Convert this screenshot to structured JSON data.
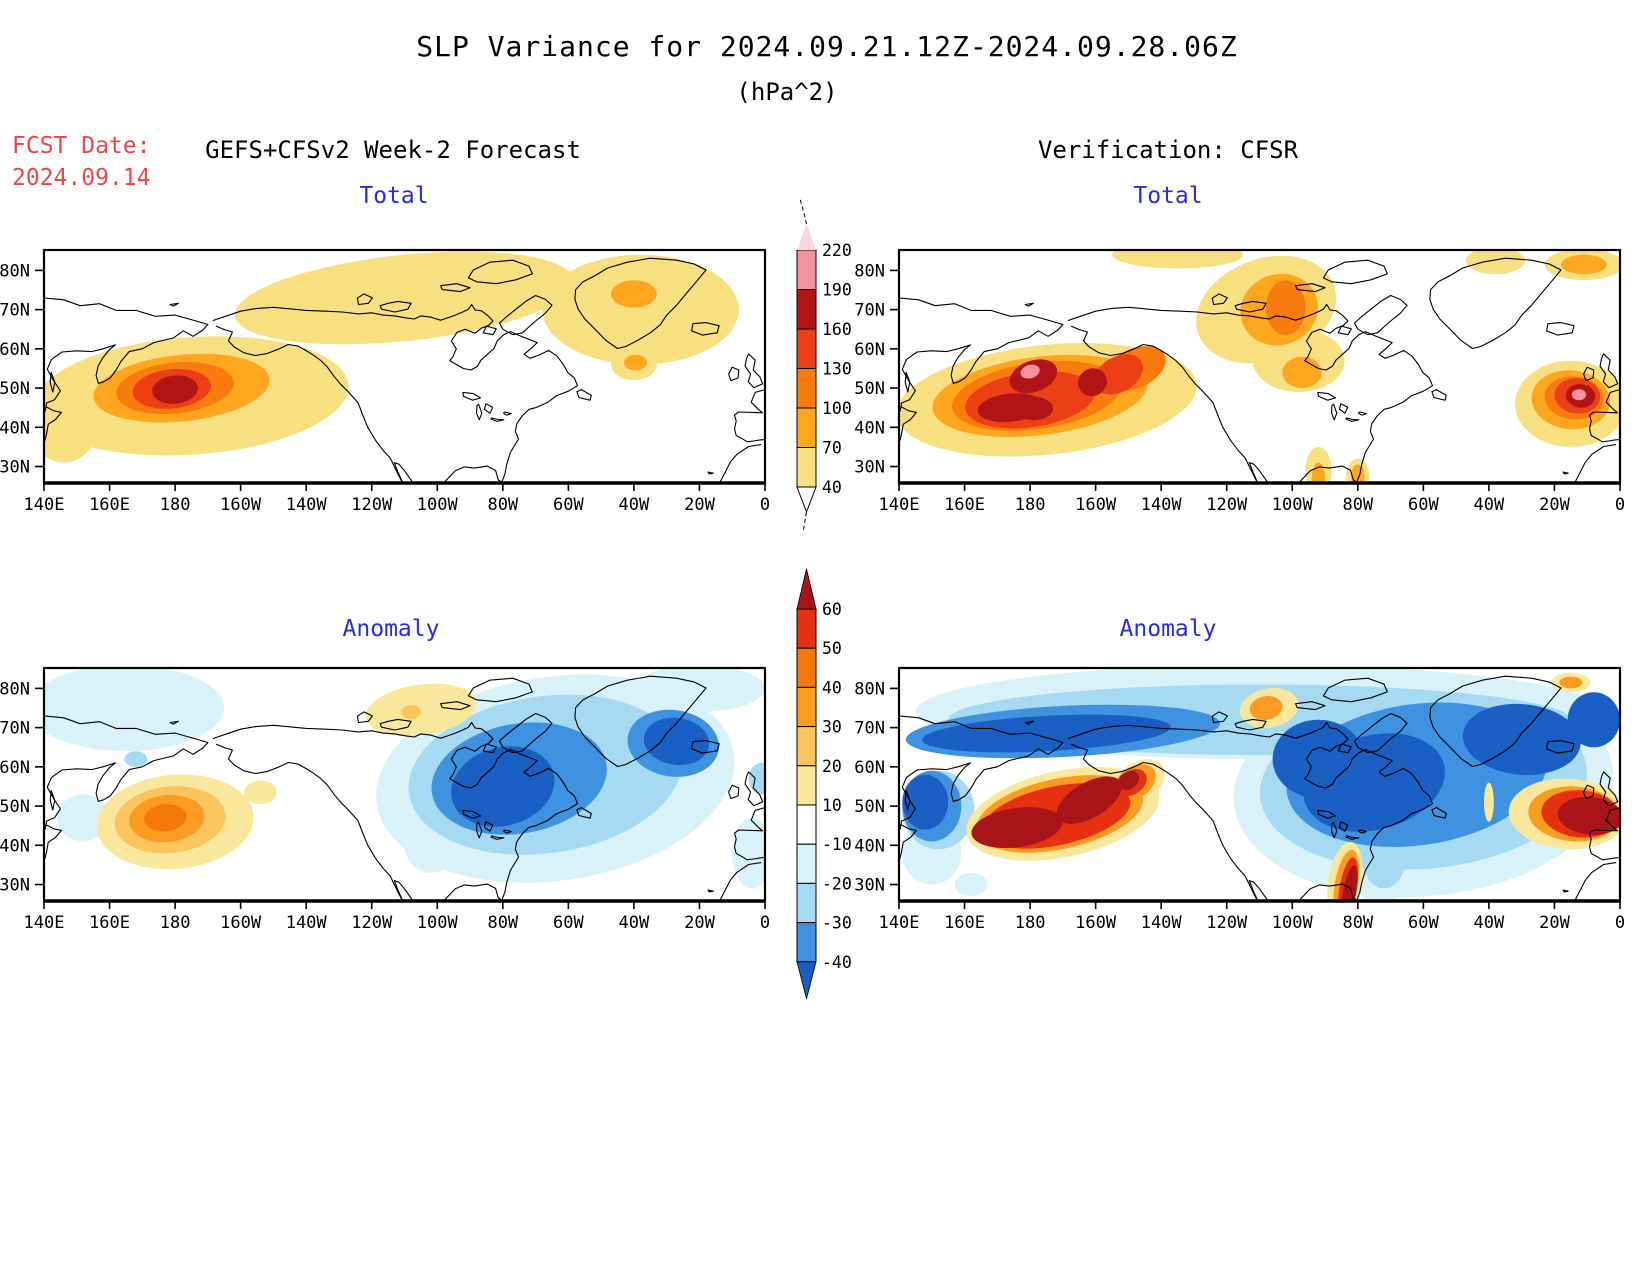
{
  "header": {
    "title": "SLP Variance for 2024.09.21.12Z-2024.09.28.06Z",
    "subtitle": "(hPa^2)"
  },
  "fcst": {
    "label": "FCST Date:",
    "date": "2024.09.14"
  },
  "columns": {
    "left_header": "GEFS+CFSv2 Week-2 Forecast",
    "right_header": "Verification: CFSR"
  },
  "colors": {
    "fcst_date": "#F04545",
    "panel_title": "#2B2BE8",
    "coastline": "#000000"
  },
  "chart_data": {
    "type": "heatmap",
    "subtype": "filled-contour-map",
    "units": "hPa^2",
    "grid": false,
    "lon_range": [
      "140E",
      "0"
    ],
    "lat_range": [
      "~26N",
      "~85N"
    ],
    "axes": {
      "lon_values": [
        140,
        160,
        180,
        200,
        220,
        240,
        260,
        280,
        300,
        320,
        340,
        360
      ],
      "lon_labels": [
        "140E",
        "160E",
        "180",
        "160W",
        "140W",
        "120W",
        "100W",
        "80W",
        "60W",
        "40W",
        "20W",
        "0"
      ],
      "lat_values": [
        80,
        70,
        60,
        50,
        40,
        30
      ],
      "lat_labels": [
        "80N",
        "70N",
        "60N",
        "50N",
        "40N",
        "30N"
      ]
    },
    "palette": {
      "t40": "#F8E080",
      "t70": "#FFA61E",
      "t100": "#F97B0D",
      "t130": "#EC3F15",
      "t160": "#B01414",
      "t190": "#F2939F",
      "t220": "#F9D6DD",
      "p10": "#F9E89B",
      "p20": "#FBC45C",
      "p30": "#FB9B1F",
      "p40": "#F4790D",
      "p50": "#E5310F",
      "p60": "#A81418",
      "n10": "#D9F1F9",
      "n20": "#A6D9F2",
      "n30": "#3F92E0",
      "n40": "#1A5FC4",
      "white": "#FFFFFF"
    },
    "colorbars": {
      "total": {
        "ticks_top_to_bottom": [
          "220",
          "190",
          "160",
          "130",
          "100",
          "70",
          "40"
        ],
        "segment_colors_top_to_bottom": [
          "t190",
          "t160",
          "t130",
          "t100",
          "t70",
          "t40"
        ],
        "tip_top_color": "t220"
      },
      "anomaly": {
        "ticks_top_to_bottom": [
          "60",
          "50",
          "40",
          "30",
          "20",
          "10",
          "-10",
          "-20",
          "-30",
          "-40"
        ],
        "segment_colors_top_to_bottom": [
          "p50",
          "p40",
          "p30",
          "p20",
          "p10",
          "white",
          "n10",
          "n20",
          "n30"
        ],
        "tip_top_color": "p60",
        "tip_bottom_color": "n40"
      }
    },
    "panels": [
      {
        "id": "fcst-total",
        "title": "Total",
        "column": "left",
        "row": "top",
        "colorbar": "total",
        "features": [
          [
            "t40",
            185,
            48,
            48,
            15,
            -4
          ],
          [
            "t40",
            146,
            42,
            11,
            11,
            0
          ],
          [
            "t40",
            250,
            73,
            52,
            11,
            -6
          ],
          [
            "t40",
            322,
            70,
            30,
            14,
            0
          ],
          [
            "t40",
            320,
            56,
            7,
            4,
            0
          ],
          [
            "t70",
            182,
            50,
            27,
            8.5,
            -6
          ],
          [
            "t70",
            320,
            74,
            7,
            3.5,
            0
          ],
          [
            "t70",
            320.5,
            56.5,
            3.5,
            2,
            0
          ],
          [
            "t100",
            180,
            50,
            18,
            6.5,
            -6
          ],
          [
            "t130",
            179,
            49.8,
            12,
            5,
            -6
          ],
          [
            "t160",
            180,
            49.6,
            7,
            3.6,
            -6
          ]
        ]
      },
      {
        "id": "cfsr-total",
        "title": "Total",
        "column": "right",
        "row": "top",
        "colorbar": "total",
        "features": [
          [
            "t40",
            185,
            47,
            46,
            14,
            -6
          ],
          [
            "t40",
            252,
            70,
            22,
            13,
            -20
          ],
          [
            "t40",
            262,
            57,
            14,
            8,
            0
          ],
          [
            "t40",
            345,
            46,
            17,
            11,
            0
          ],
          [
            "t40",
            349,
            81.5,
            12,
            4,
            0
          ],
          [
            "t40",
            322,
            82.5,
            9,
            3.5,
            0
          ],
          [
            "t40",
            225,
            84,
            20,
            3.5,
            0
          ],
          [
            "t40",
            280,
            27.5,
            3.5,
            4.5,
            0
          ],
          [
            "t40",
            268,
            29,
            4,
            6,
            0
          ],
          [
            "t70",
            183,
            48,
            33,
            10,
            -7
          ],
          [
            "t70",
            256,
            70,
            12,
            9,
            -20
          ],
          [
            "t70",
            263,
            54,
            6,
            4,
            0
          ],
          [
            "t70",
            345,
            47,
            12,
            7.5,
            5
          ],
          [
            "t70",
            349,
            81.5,
            7,
            2.5,
            0
          ],
          [
            "t70",
            280,
            27.5,
            2,
            3,
            0
          ],
          [
            "t70",
            268,
            27,
            2,
            4,
            0
          ],
          [
            "t100",
            182,
            48,
            26,
            8.5,
            -8
          ],
          [
            "t100",
            212,
            55,
            10,
            5,
            -25
          ],
          [
            "t100",
            258,
            70.5,
            6,
            7,
            0
          ],
          [
            "t100",
            346,
            47.5,
            9,
            5.5,
            5
          ],
          [
            "t130",
            180,
            47,
            20,
            7,
            -8
          ],
          [
            "t130",
            207,
            53.5,
            8,
            4.5,
            -30
          ],
          [
            "t130",
            347,
            48,
            7,
            4.5,
            5
          ],
          [
            "t160",
            174,
            45,
            10,
            3.6,
            -6
          ],
          [
            "t160",
            181,
            44.8,
            6,
            3,
            0
          ],
          [
            "t160",
            181,
            53,
            7.5,
            4,
            -20
          ],
          [
            "t160",
            199,
            51.5,
            4.5,
            3.5,
            -30
          ],
          [
            "t160",
            348,
            48,
            4.5,
            3,
            5
          ],
          [
            "t190",
            180,
            54.2,
            3,
            1.7,
            -15
          ],
          [
            "t190",
            347.5,
            48.3,
            2.2,
            1.4,
            0
          ]
        ]
      },
      {
        "id": "fcst-anomaly",
        "title": "Anomaly",
        "column": "left",
        "row": "bottom",
        "colorbar": "anomaly",
        "features": [
          [
            "n10",
            165,
            75,
            30,
            11,
            0
          ],
          [
            "n10",
            152,
            47,
            8,
            6,
            0
          ],
          [
            "n10",
            296,
            57,
            55,
            26,
            -8
          ],
          [
            "n10",
            258,
            40,
            8,
            7,
            0
          ],
          [
            "n10",
            356,
            38,
            6,
            9,
            0
          ],
          [
            "n10",
            340,
            80,
            20,
            6,
            0
          ],
          [
            "n20",
            293,
            58,
            42,
            20,
            -8
          ],
          [
            "n20",
            168,
            62,
            3.5,
            2,
            0
          ],
          [
            "n20",
            359,
            57,
            4,
            4,
            0
          ],
          [
            "n30",
            285,
            57,
            27,
            14,
            -10
          ],
          [
            "n30",
            332,
            66,
            14,
            8.5,
            8
          ],
          [
            "n40",
            280,
            55,
            16,
            10,
            -15
          ],
          [
            "n40",
            333,
            66.5,
            10,
            6,
            8
          ],
          [
            "p10",
            180,
            46,
            24,
            12,
            -5
          ],
          [
            "p10",
            255,
            74.5,
            17,
            6.5,
            -8
          ],
          [
            "p10",
            206,
            53.5,
            5,
            3,
            0
          ],
          [
            "p20",
            178.5,
            46.5,
            17,
            8.5,
            -6
          ],
          [
            "p20",
            252,
            74,
            3,
            1.8,
            0
          ],
          [
            "p30",
            177.5,
            46.8,
            11.5,
            6,
            -6
          ],
          [
            "p40",
            177,
            47,
            6.5,
            3.5,
            -6
          ]
        ]
      },
      {
        "id": "cfsr-anomaly",
        "title": "Anomaly",
        "column": "right",
        "row": "bottom",
        "colorbar": "anomaly",
        "features": [
          [
            "n10",
            250,
            74,
            105,
            12,
            0
          ],
          [
            "n10",
            300,
            55,
            58,
            28,
            -5
          ],
          [
            "n10",
            150,
            38,
            9,
            8,
            0
          ],
          [
            "n10",
            162,
            30,
            5,
            3,
            0
          ],
          [
            "n10",
            287,
            35,
            9,
            10,
            0
          ],
          [
            "n20",
            250,
            72,
            95,
            9,
            0
          ],
          [
            "n20",
            300,
            56,
            50,
            22,
            -5
          ],
          [
            "n20",
            152,
            49,
            11,
            10,
            0
          ],
          [
            "n20",
            288,
            38,
            7,
            9,
            0
          ],
          [
            "n30",
            190,
            69,
            48,
            6.5,
            -3
          ],
          [
            "n30",
            298,
            58,
            40,
            18,
            -8
          ],
          [
            "n30",
            150,
            50,
            9,
            9,
            0
          ],
          [
            "n40",
            185,
            68.5,
            38,
            4.5,
            -3
          ],
          [
            "n40",
            285,
            56,
            22,
            12,
            -15
          ],
          [
            "n40",
            268,
            62,
            14,
            10,
            0
          ],
          [
            "n40",
            330,
            67,
            18,
            9,
            5
          ],
          [
            "n40",
            352,
            72,
            8,
            7,
            0
          ],
          [
            "n40",
            148,
            51,
            7,
            7,
            0
          ],
          [
            "p10",
            190,
            48,
            30,
            11,
            -12
          ],
          [
            "p10",
            213,
            56,
            9,
            5,
            -35
          ],
          [
            "p10",
            276,
            31,
            5,
            10,
            10
          ],
          [
            "p10",
            344,
            48,
            18,
            9,
            3
          ],
          [
            "p10",
            253,
            75,
            9,
            5,
            -10
          ],
          [
            "p10",
            345,
            81.5,
            6,
            2.5,
            0
          ],
          [
            "p10",
            320,
            51,
            1.5,
            5,
            0
          ],
          [
            "p30",
            189,
            48,
            26,
            9,
            -12
          ],
          [
            "p30",
            212,
            56,
            7,
            4,
            -35
          ],
          [
            "p30",
            252,
            75,
            5,
            3,
            -10
          ],
          [
            "p30",
            276.5,
            30,
            3.5,
            9,
            10
          ],
          [
            "p30",
            346,
            48,
            14,
            7,
            4
          ],
          [
            "p30",
            345,
            81.5,
            3.5,
            1.5,
            0
          ],
          [
            "p50",
            188,
            47.5,
            23,
            7.5,
            -12
          ],
          [
            "p50",
            211,
            56,
            5,
            3,
            -35
          ],
          [
            "p50",
            277,
            29,
            2.6,
            8,
            10
          ],
          [
            "p50",
            348,
            48,
            12,
            6,
            5
          ],
          [
            "p60",
            176,
            44.5,
            14,
            5,
            -8
          ],
          [
            "p60",
            198,
            51.5,
            11,
            4.5,
            -30
          ],
          [
            "p60",
            210,
            56.5,
            3.5,
            2.2,
            -35
          ],
          [
            "p60",
            277.5,
            28,
            2,
            7,
            10
          ],
          [
            "p60",
            351,
            47.5,
            10,
            4.8,
            5
          ]
        ]
      }
    ]
  }
}
